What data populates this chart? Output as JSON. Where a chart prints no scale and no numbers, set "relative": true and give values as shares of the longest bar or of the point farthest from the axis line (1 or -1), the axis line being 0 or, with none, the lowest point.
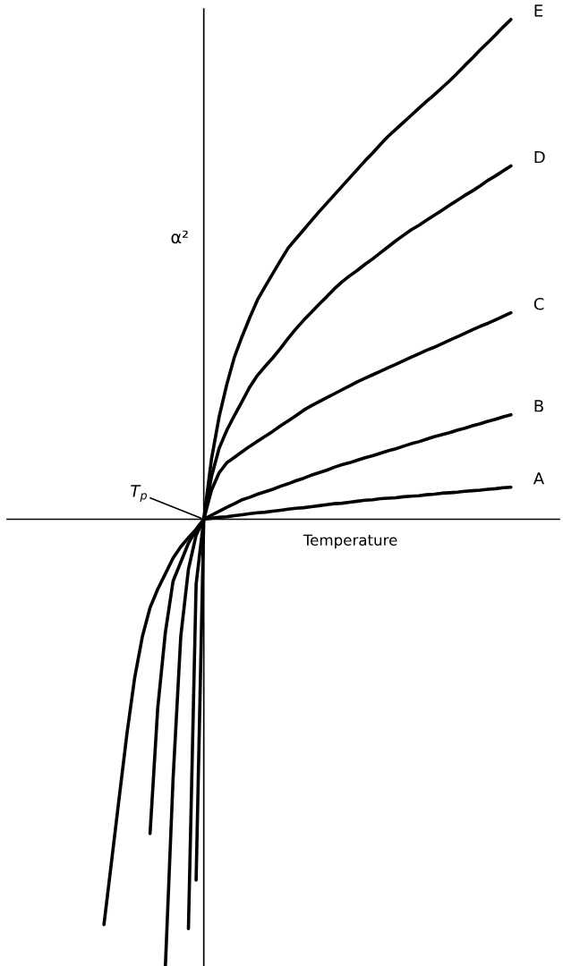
{
  "chart_data": {
    "type": "line",
    "relative": true,
    "xlabel": "Temperature",
    "ylabel": "α²",
    "categories": [
      null,
      null,
      null,
      null,
      null,
      null,
      null,
      null,
      null,
      null,
      null,
      null,
      null,
      null,
      null,
      null,
      null,
      null,
      null,
      null,
      null,
      null,
      null,
      null,
      null,
      null,
      null,
      null,
      null,
      null,
      null,
      null,
      null,
      null,
      null,
      null,
      null,
      null,
      null,
      null,
      null,
      null,
      null,
      null,
      null,
      null,
      null,
      null,
      null,
      null,
      null,
      null,
      null,
      null,
      null
    ],
    "annotations": [
      "T$_{p}$"
    ],
    "series": [
      {
        "name": "A",
        "color": "#000000",
        "values": [
          null,
          null,
          null,
          null,
          null,
          null,
          null,
          null,
          null,
          null,
          null,
          null,
          null,
          -0.722,
          0,
          0.002,
          0.004,
          0.005,
          0.007,
          0.009,
          0.011,
          0.013,
          0.014,
          0.016,
          0.018,
          0.02,
          0.022,
          0.023,
          0.025,
          0.027,
          0.029,
          0.031,
          0.032,
          0.034,
          0.036,
          0.038,
          0.039,
          0.041,
          0.042,
          0.043,
          0.045,
          0.046,
          0.047,
          0.049,
          0.05,
          0.052,
          0.053,
          0.054,
          0.056,
          0.057,
          0.058,
          0.06,
          0.061,
          0.063,
          0.064
        ]
      },
      {
        "name": "B",
        "color": "#000000",
        "values": [
          null,
          null,
          null,
          null,
          null,
          null,
          null,
          null,
          null,
          null,
          null,
          null,
          -0.819,
          -0.13,
          0,
          0.008,
          0.016,
          0.024,
          0.031,
          0.039,
          0.044,
          0.05,
          0.055,
          0.06,
          0.066,
          0.071,
          0.077,
          0.082,
          0.088,
          0.093,
          0.098,
          0.104,
          0.109,
          0.113,
          0.118,
          0.123,
          0.127,
          0.132,
          0.137,
          0.141,
          0.146,
          0.151,
          0.155,
          0.16,
          0.165,
          0.169,
          0.173,
          0.178,
          0.182,
          0.187,
          0.191,
          0.196,
          0.2,
          0.205,
          0.209
        ]
      },
      {
        "name": "C",
        "color": "#000000",
        "values": [
          null,
          null,
          null,
          null,
          null,
          null,
          null,
          null,
          null,
          -0.894,
          -0.519,
          -0.235,
          -0.1,
          -0.032,
          0,
          0.058,
          0.093,
          0.113,
          0.124,
          0.135,
          0.146,
          0.156,
          0.166,
          0.176,
          0.187,
          0.197,
          0.207,
          0.218,
          0.227,
          0.235,
          0.243,
          0.251,
          0.259,
          0.267,
          0.275,
          0.282,
          0.289,
          0.296,
          0.303,
          0.31,
          0.317,
          0.324,
          0.331,
          0.338,
          0.344,
          0.351,
          0.358,
          0.365,
          0.372,
          0.379,
          0.386,
          0.392,
          0.399,
          0.406,
          0.413
        ]
      },
      {
        "name": "D",
        "color": "#000000",
        "values": [
          null,
          null,
          null,
          null,
          null,
          null,
          null,
          -0.629,
          -0.378,
          -0.226,
          -0.124,
          -0.086,
          -0.048,
          -0.022,
          0,
          0.085,
          0.142,
          0.178,
          0.208,
          0.236,
          0.265,
          0.288,
          0.306,
          0.323,
          0.342,
          0.362,
          0.381,
          0.398,
          0.414,
          0.43,
          0.445,
          0.461,
          0.475,
          0.487,
          0.498,
          0.51,
          0.521,
          0.533,
          0.545,
          0.557,
          0.568,
          0.579,
          0.588,
          0.598,
          0.608,
          0.618,
          0.628,
          0.638,
          0.648,
          0.657,
          0.667,
          0.678,
          0.687,
          0.697,
          0.707
        ]
      },
      {
        "name": "E",
        "color": "#000000",
        "values": [
          null,
          -0.811,
          -0.683,
          -0.555,
          -0.428,
          -0.317,
          -0.235,
          -0.177,
          -0.14,
          -0.109,
          -0.078,
          -0.055,
          -0.037,
          -0.02,
          0,
          0.12,
          0.205,
          0.27,
          0.325,
          0.366,
          0.404,
          0.439,
          0.466,
          0.492,
          0.518,
          0.543,
          0.561,
          0.579,
          0.597,
          0.615,
          0.632,
          0.649,
          0.666,
          0.683,
          0.7,
          0.717,
          0.733,
          0.75,
          0.766,
          0.78,
          0.794,
          0.808,
          0.822,
          0.836,
          0.849,
          0.863,
          0.877,
          0.892,
          0.908,
          0.923,
          0.939,
          0.954,
          0.969,
          0.985,
          1.0
        ]
      }
    ]
  }
}
